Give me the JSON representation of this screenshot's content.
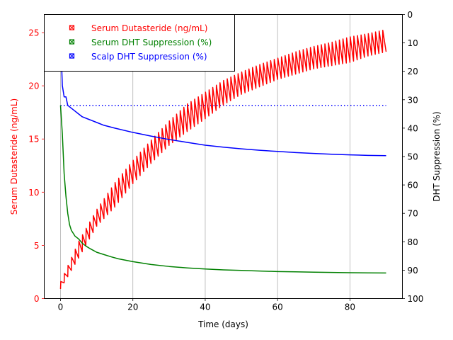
{
  "chart_data": {
    "type": "line",
    "xlabel": "Time (days)",
    "ylabel_left": "Serum Dutasteride (ng/mL)",
    "ylabel_right": "DHT Suppression (%)",
    "xlim": [
      -4.5,
      94.5
    ],
    "ylim_left": [
      0,
      26.7
    ],
    "ylim_right": [
      100,
      0
    ],
    "x_ticks": [
      0,
      20,
      40,
      60,
      80
    ],
    "y_left_ticks": [
      0,
      5,
      10,
      15,
      20,
      25
    ],
    "y_right_ticks": [
      0,
      10,
      20,
      30,
      40,
      50,
      60,
      70,
      80,
      90,
      100
    ],
    "grid": "vertical",
    "legend_position": "top-left",
    "left_axis_color": "#ff0000",
    "series": [
      {
        "name": "Serum Dutasteride (ng/mL)",
        "axis": "left",
        "color": "#ff0000",
        "style": "sawtooth",
        "trough": [
          [
            0,
            0.9
          ],
          [
            5,
            3.8
          ],
          [
            10,
            6.8
          ],
          [
            15,
            8.6
          ],
          [
            20,
            10.8
          ],
          [
            25,
            12.7
          ],
          [
            30,
            14.4
          ],
          [
            35,
            15.7
          ],
          [
            40,
            16.9
          ],
          [
            45,
            18.2
          ],
          [
            50,
            19.2
          ],
          [
            55,
            19.9
          ],
          [
            60,
            20.6
          ],
          [
            65,
            21.1
          ],
          [
            70,
            21.6
          ],
          [
            75,
            21.9
          ],
          [
            80,
            22.2
          ],
          [
            85,
            22.8
          ],
          [
            90,
            23.2
          ]
        ],
        "peak": [
          [
            0,
            1.6
          ],
          [
            5,
            5.4
          ],
          [
            10,
            8.4
          ],
          [
            15,
            10.9
          ],
          [
            20,
            13.0
          ],
          [
            25,
            14.9
          ],
          [
            30,
            16.7
          ],
          [
            35,
            18.3
          ],
          [
            40,
            19.4
          ],
          [
            45,
            20.5
          ],
          [
            50,
            21.3
          ],
          [
            55,
            22.0
          ],
          [
            60,
            22.6
          ],
          [
            65,
            23.2
          ],
          [
            70,
            23.7
          ],
          [
            75,
            24.1
          ],
          [
            80,
            24.6
          ],
          [
            85,
            24.9
          ],
          [
            90,
            25.3
          ]
        ]
      },
      {
        "name": "Serum DHT Suppression (%)",
        "axis": "right",
        "color": "#008000",
        "points": [
          [
            0,
            32
          ],
          [
            0.5,
            42
          ],
          [
            1,
            56
          ],
          [
            1.5,
            64
          ],
          [
            2,
            70
          ],
          [
            2.5,
            74
          ],
          [
            3,
            76
          ],
          [
            3.5,
            77
          ],
          [
            4,
            78
          ],
          [
            5,
            79
          ],
          [
            6,
            80.5
          ],
          [
            7,
            81.5
          ],
          [
            8,
            82.3
          ],
          [
            9,
            83
          ],
          [
            10,
            83.7
          ],
          [
            12,
            84.5
          ],
          [
            14,
            85.3
          ],
          [
            16,
            86
          ],
          [
            18,
            86.5
          ],
          [
            20,
            87
          ],
          [
            25,
            88
          ],
          [
            30,
            88.7
          ],
          [
            35,
            89.2
          ],
          [
            40,
            89.6
          ],
          [
            45,
            89.9
          ],
          [
            50,
            90.1
          ],
          [
            55,
            90.3
          ],
          [
            60,
            90.5
          ],
          [
            65,
            90.6
          ],
          [
            70,
            90.7
          ],
          [
            75,
            90.8
          ],
          [
            80,
            90.9
          ],
          [
            85,
            90.95
          ],
          [
            90,
            91
          ]
        ]
      },
      {
        "name": "Scalp DHT Suppression (%)",
        "axis": "right",
        "color": "#0000ff",
        "points": [
          [
            0,
            0
          ],
          [
            0.2,
            14
          ],
          [
            0.5,
            25
          ],
          [
            1,
            29
          ],
          [
            1.5,
            29
          ],
          [
            2,
            32
          ],
          [
            3,
            33
          ],
          [
            4,
            34
          ],
          [
            5,
            35
          ],
          [
            6,
            36
          ],
          [
            8,
            37
          ],
          [
            10,
            38
          ],
          [
            12,
            39
          ],
          [
            15,
            40
          ],
          [
            20,
            41.5
          ],
          [
            25,
            42.8
          ],
          [
            30,
            44
          ],
          [
            35,
            45
          ],
          [
            40,
            46
          ],
          [
            45,
            46.7
          ],
          [
            50,
            47.3
          ],
          [
            55,
            47.8
          ],
          [
            60,
            48.2
          ],
          [
            65,
            48.6
          ],
          [
            70,
            48.9
          ],
          [
            75,
            49.2
          ],
          [
            80,
            49.4
          ],
          [
            85,
            49.6
          ],
          [
            90,
            49.7
          ]
        ]
      }
    ],
    "reference_lines": [
      {
        "axis": "right",
        "y": 32,
        "color": "#0000ff",
        "style": "dotted",
        "x_range": [
          0,
          90
        ]
      }
    ]
  }
}
